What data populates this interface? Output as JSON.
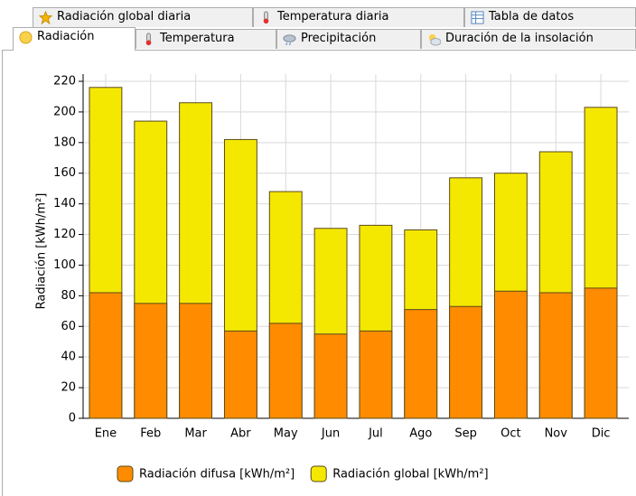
{
  "tabs": {
    "top": [
      "Radiación global diaria",
      "Temperatura diaria",
      "Tabla de datos"
    ],
    "bottom": [
      "Radiación",
      "Temperatura",
      "Precipitación",
      "Duración de la insolación"
    ]
  },
  "chart_data": {
    "type": "bar",
    "overlap": true,
    "y_label": "Radiación [kWh/m²]",
    "categories": [
      "Ene",
      "Feb",
      "Mar",
      "Abr",
      "May",
      "Jun",
      "Jul",
      "Ago",
      "Sep",
      "Oct",
      "Nov",
      "Dic"
    ],
    "series": [
      {
        "name": "Radiación global [kWh/m²]",
        "color": "#f5e800",
        "values": [
          216,
          194,
          206,
          182,
          148,
          124,
          126,
          123,
          157,
          160,
          174,
          203
        ]
      },
      {
        "name": "Radiación difusa [kWh/m²]",
        "color": "#ff8c00",
        "values": [
          82,
          75,
          75,
          57,
          62,
          55,
          57,
          71,
          73,
          83,
          82,
          85
        ]
      }
    ],
    "ylim": [
      0,
      220
    ],
    "yticks": [
      0,
      20,
      40,
      60,
      80,
      100,
      120,
      140,
      160,
      180,
      200,
      220
    ],
    "grid": true
  }
}
